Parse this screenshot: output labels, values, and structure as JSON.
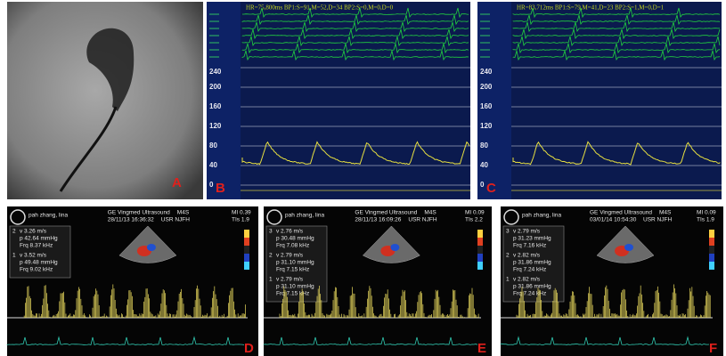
{
  "panels": [
    {
      "label": "A"
    },
    {
      "label": "B",
      "header": "HR=75,800ms BP1:S=91,M=52,D=34 BP2:S=0,M=0,D=0",
      "scale": [
        "240",
        "200",
        "160",
        "120",
        "80",
        "40",
        "0"
      ]
    },
    {
      "label": "C",
      "header": "HR=83,712ms BP1:S=79,M=41,D=23 BP2:S=1,M=0,D=1",
      "scale": [
        "240",
        "200",
        "160",
        "120",
        "80",
        "40",
        "0"
      ]
    },
    {
      "label": "D",
      "patient": "pah zhang, lina",
      "vendor": "GE Vingmed Ultrasound",
      "probe": "M4S",
      "date": "28/11/13 16:36:32",
      "user": "USR NJFH",
      "mi": "MI 0.39",
      "tis": "TIs 1.9",
      "measurements": [
        {
          "n": "2",
          "lines": [
            "v 3.26 m/s",
            "p 42.64 mmHg",
            "Frq 8.37 kHz"
          ]
        },
        {
          "n": "1",
          "lines": [
            "v 3.52 m/s",
            "p 49.48 mmHg",
            "Frq 9.02 kHz"
          ]
        }
      ]
    },
    {
      "label": "E",
      "patient": "pah zhang, lina",
      "vendor": "GE Vingmed Ultrasound",
      "probe": "M4S",
      "date": "28/11/13 16:09:26",
      "user": "USR NJFH",
      "mi": "MI 0.09",
      "tis": "TIs 2.2",
      "measurements": [
        {
          "n": "3",
          "lines": [
            "v 2.76 m/s",
            "p 30.48 mmHg",
            "Frq 7.08 kHz"
          ]
        },
        {
          "n": "2",
          "lines": [
            "v 2.79 m/s",
            "p 31.10 mmHg",
            "Frq 7.15 kHz"
          ]
        },
        {
          "n": "1",
          "lines": [
            "v 2.79 m/s",
            "p 31.10 mmHg",
            "Frq 7.15 kHz"
          ]
        }
      ]
    },
    {
      "label": "F",
      "patient": "pah zhang, lina",
      "vendor": "GE Vingmed Ultrasound",
      "probe": "M4S",
      "date": "03/01/14 10:54:30",
      "user": "USR NJFH",
      "mi": "MI 0.09",
      "tis": "TIs 1.9",
      "measurements": [
        {
          "n": "3",
          "lines": [
            "v 2.79 m/s",
            "p 31.23 mmHg",
            "Frq 7.16 kHz"
          ]
        },
        {
          "n": "2",
          "lines": [
            "v 2.82 m/s",
            "p 31.86 mmHg",
            "Frq 7.24 kHz"
          ]
        },
        {
          "n": "1",
          "lines": [
            "v 2.82 m/s",
            "p 31.86 mmHg",
            "Frq 7.24 kHz"
          ]
        }
      ]
    }
  ]
}
